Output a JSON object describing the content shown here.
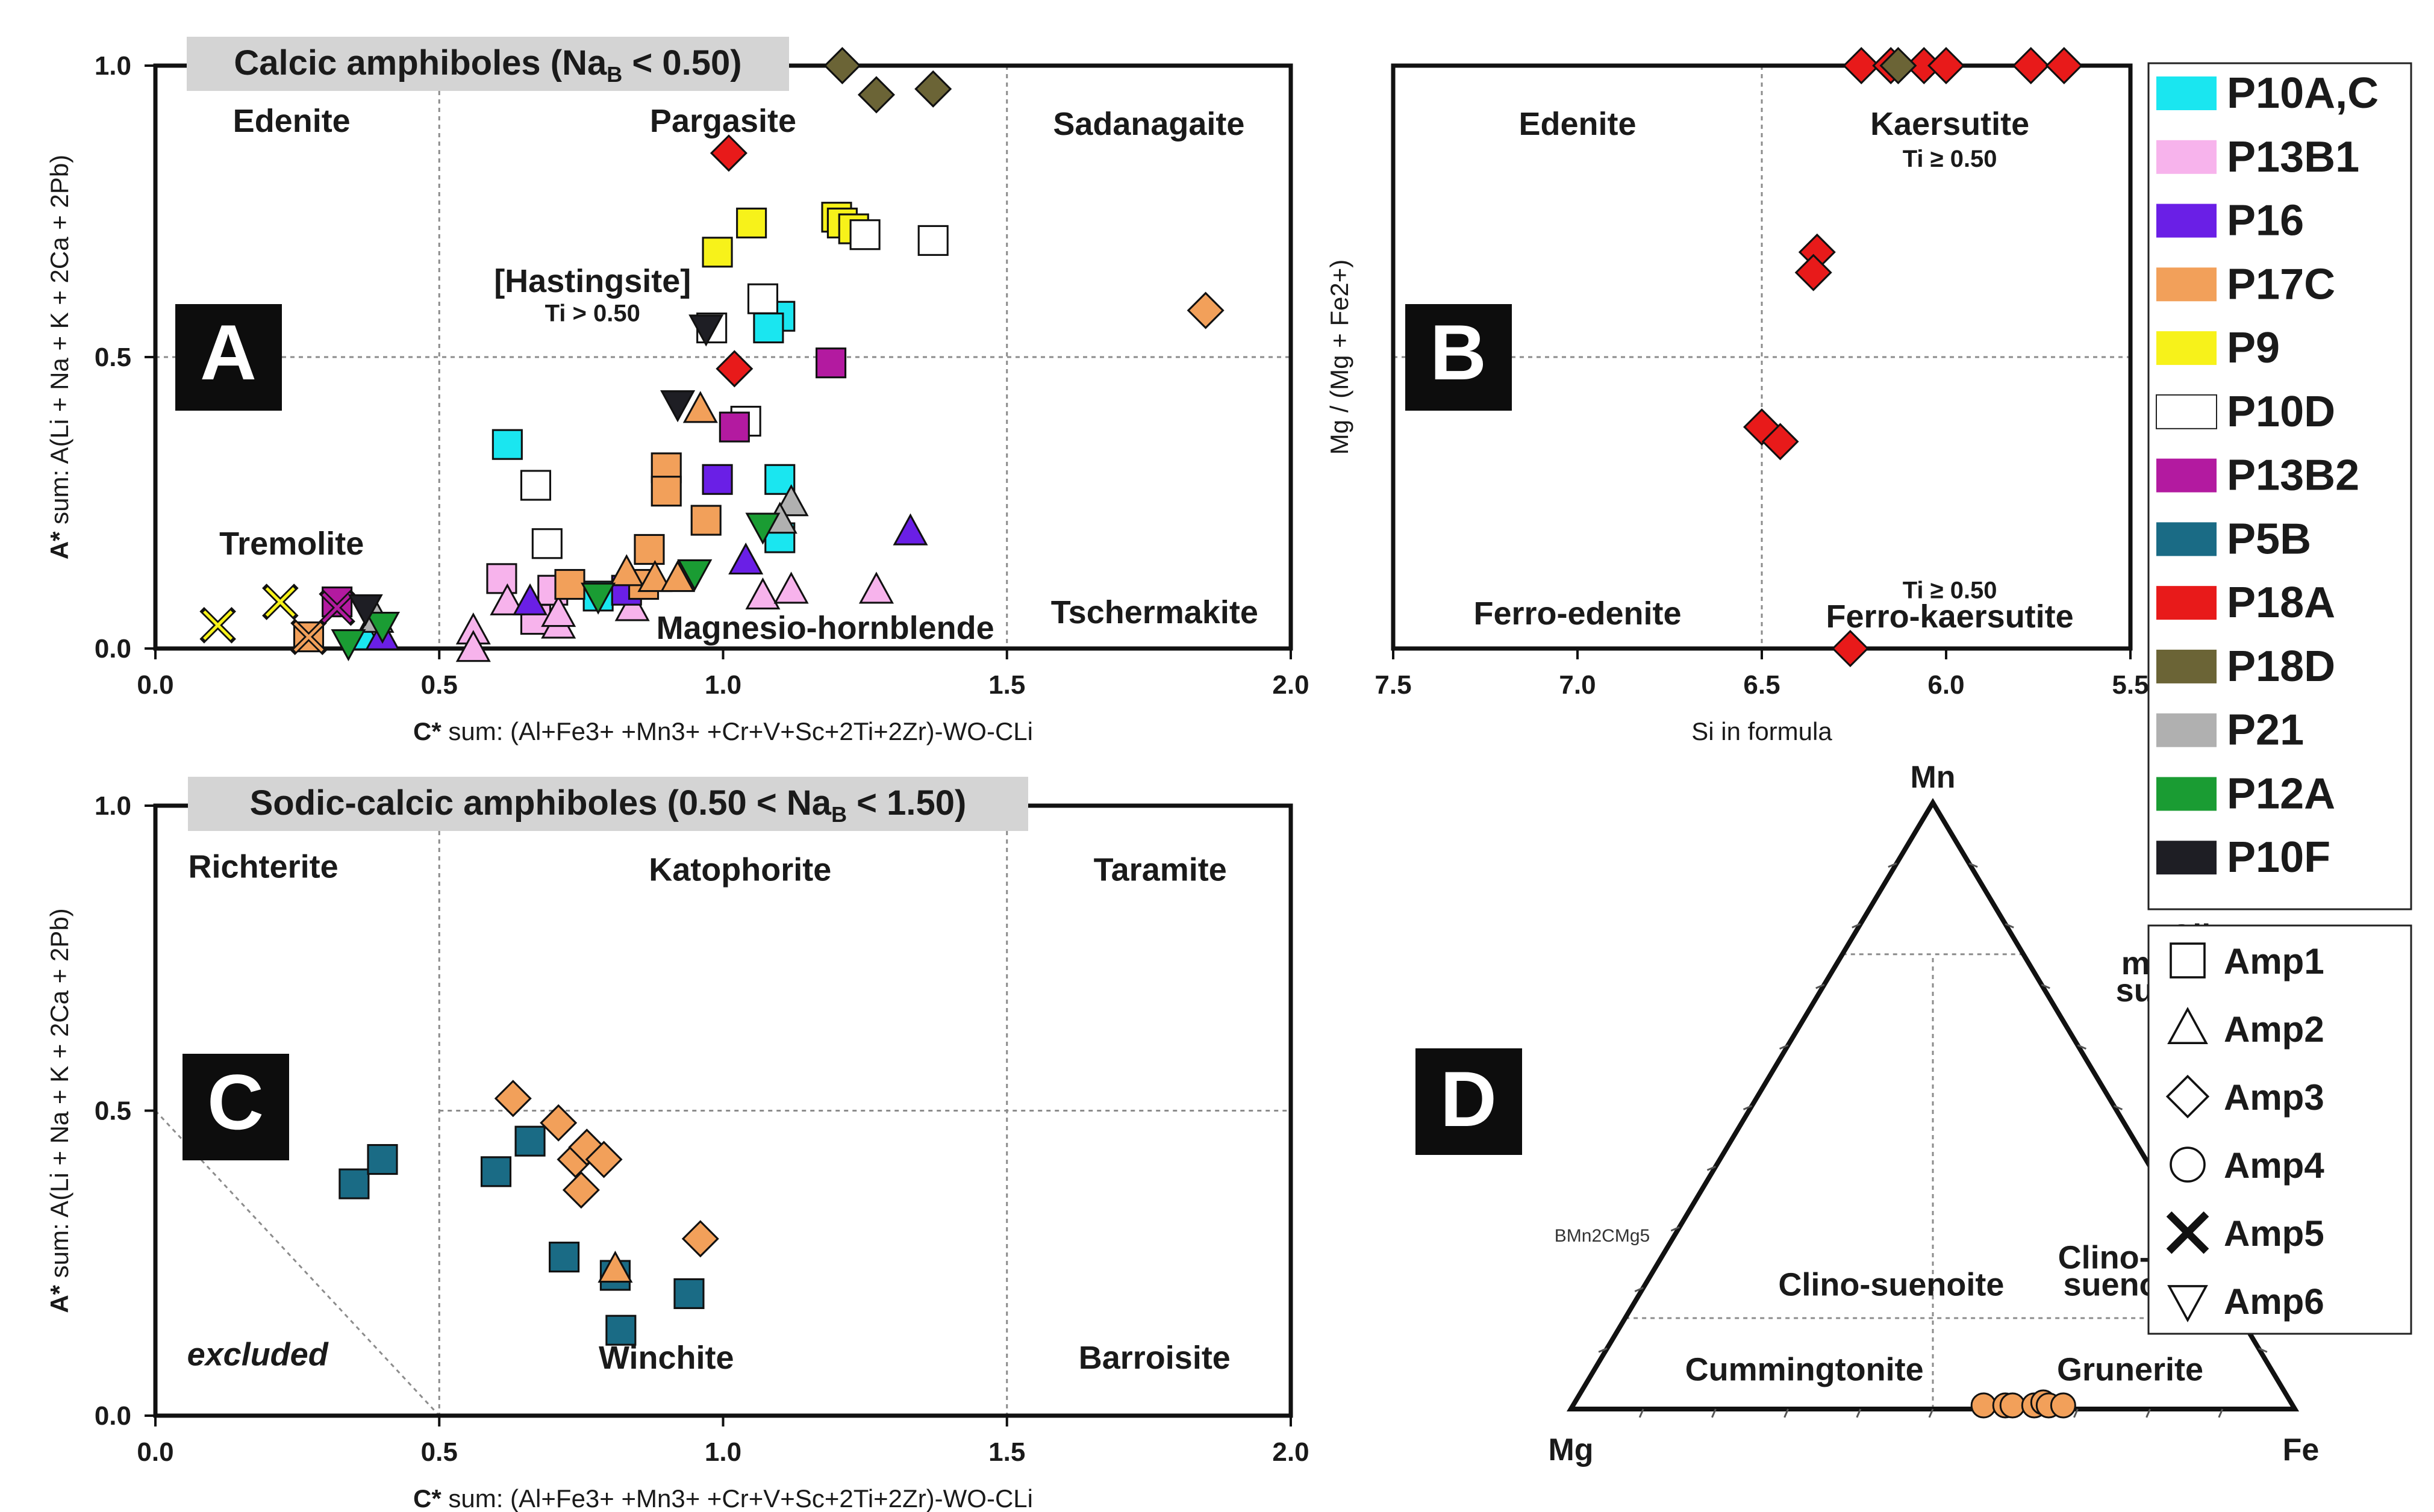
{
  "colors": {
    "P10A,C": "#1ae6f0",
    "P13B1": "#f7b3ec",
    "P16": "#6a1fe6",
    "P17C": "#f2a05a",
    "P9": "#f7f21a",
    "P10D": "#ffffff",
    "P13B2": "#b31aa0",
    "P5B": "#1a6b85",
    "P18A": "#e81a1a",
    "P18D": "#6b6436",
    "P21": "#b0b0b0",
    "P12A": "#1a9c33",
    "P10F": "#1e1e24"
  },
  "legend_samples": [
    {
      "name": "P10A,C",
      "label": "P10A,C"
    },
    {
      "name": "P13B1",
      "label": "P13B1"
    },
    {
      "name": "P16",
      "label": "P16"
    },
    {
      "name": "P17C",
      "label": "P17C"
    },
    {
      "name": "P9",
      "label": "P9"
    },
    {
      "name": "P10D",
      "label": "P10D"
    },
    {
      "name": "P13B2",
      "label": "P13B2"
    },
    {
      "name": "P5B",
      "label": "P5B"
    },
    {
      "name": "P18A",
      "label": "P18A"
    },
    {
      "name": "P18D",
      "label": "P18D"
    },
    {
      "name": "P21",
      "label": "P21"
    },
    {
      "name": "P12A",
      "label": "P12A"
    },
    {
      "name": "P10F",
      "label": "P10F"
    }
  ],
  "legend_shapes": [
    {
      "shape": "square",
      "label": "Amp1"
    },
    {
      "shape": "triangle",
      "label": "Amp2"
    },
    {
      "shape": "diamond",
      "label": "Amp3"
    },
    {
      "shape": "circle",
      "label": "Amp4"
    },
    {
      "shape": "cross",
      "label": "Amp5"
    },
    {
      "shape": "triangle-down",
      "label": "Amp6"
    }
  ],
  "chart_data": [
    {
      "id": "A",
      "type": "scatter",
      "panel_letter": "A",
      "title": "Calcic amphiboles (Na",
      "title_sub": "B",
      "title_tail": " < 0.50)",
      "xlabel": "C* sum: ",
      "xlabel_rest": "(Al+Fe3+ +Mn3+ +Cr+V+Sc+2Ti+2Zr)-WO-CLi",
      "ylabel": "A* sum: A(Li + Na + K + 2Ca + 2Pb)",
      "xlim": [
        0,
        2
      ],
      "ylim": [
        0,
        1
      ],
      "xticks": [
        "0.0",
        "0.5",
        "1.0",
        "1.5",
        "2.0"
      ],
      "yticks": [
        "0.0",
        "0.5",
        "1.0"
      ],
      "region_labels": [
        {
          "text": "Edenite",
          "x": 0.24,
          "y": 0.905
        },
        {
          "text": "Pargasite",
          "x": 1.0,
          "y": 0.905
        },
        {
          "text": "Sadanagaite",
          "x": 1.75,
          "y": 0.9
        },
        {
          "text": "[Hastingsite]",
          "x": 0.77,
          "y": 0.63
        },
        {
          "text": "Ti > 0.50",
          "x": 0.77,
          "y": 0.58,
          "small": true
        },
        {
          "text": "Tremolite",
          "x": 0.24,
          "y": 0.18
        },
        {
          "text": "Magnesio-hornblende",
          "x": 1.18,
          "y": 0.035
        },
        {
          "text": "Tschermakite",
          "x": 1.76,
          "y": 0.062
        }
      ],
      "points": [
        {
          "x": 0.62,
          "y": 0.35,
          "s": "P10A,C",
          "m": "square"
        },
        {
          "x": 1.1,
          "y": 0.29,
          "s": "P10A,C",
          "m": "square"
        },
        {
          "x": 1.1,
          "y": 0.57,
          "s": "P10A,C",
          "m": "square"
        },
        {
          "x": 1.08,
          "y": 0.55,
          "s": "P10A,C",
          "m": "square"
        },
        {
          "x": 1.1,
          "y": 0.19,
          "s": "P10A,C",
          "m": "square"
        },
        {
          "x": 0.78,
          "y": 0.09,
          "s": "P10A,C",
          "m": "square"
        },
        {
          "x": 0.37,
          "y": 0.02,
          "s": "P10A,C",
          "m": "triangle"
        },
        {
          "x": 0.61,
          "y": 0.12,
          "s": "P13B1",
          "m": "square"
        },
        {
          "x": 0.7,
          "y": 0.1,
          "s": "P13B1",
          "m": "square"
        },
        {
          "x": 0.67,
          "y": 0.05,
          "s": "P13B1",
          "m": "square"
        },
        {
          "x": 0.56,
          "y": 0.03,
          "s": "P13B1",
          "m": "triangle"
        },
        {
          "x": 0.56,
          "y": 0.0,
          "s": "P13B1",
          "m": "triangle"
        },
        {
          "x": 0.62,
          "y": 0.08,
          "s": "P13B1",
          "m": "triangle"
        },
        {
          "x": 0.71,
          "y": 0.04,
          "s": "P13B1",
          "m": "triangle"
        },
        {
          "x": 0.71,
          "y": 0.06,
          "s": "P13B1",
          "m": "triangle"
        },
        {
          "x": 0.84,
          "y": 0.07,
          "s": "P13B1",
          "m": "triangle"
        },
        {
          "x": 1.07,
          "y": 0.09,
          "s": "P13B1",
          "m": "triangle"
        },
        {
          "x": 1.12,
          "y": 0.1,
          "s": "P13B1",
          "m": "triangle"
        },
        {
          "x": 1.27,
          "y": 0.1,
          "s": "P13B1",
          "m": "triangle"
        },
        {
          "x": 1.33,
          "y": 0.2,
          "s": "P16",
          "m": "triangle"
        },
        {
          "x": 1.04,
          "y": 0.15,
          "s": "P16",
          "m": "triangle"
        },
        {
          "x": 0.66,
          "y": 0.08,
          "s": "P16",
          "m": "triangle"
        },
        {
          "x": 0.83,
          "y": 0.1,
          "s": "P16",
          "m": "square"
        },
        {
          "x": 0.99,
          "y": 0.29,
          "s": "P16",
          "m": "square"
        },
        {
          "x": 0.4,
          "y": 0.02,
          "s": "P16",
          "m": "triangle"
        },
        {
          "x": 0.96,
          "y": 0.41,
          "s": "P17C",
          "m": "triangle"
        },
        {
          "x": 0.9,
          "y": 0.31,
          "s": "P17C",
          "m": "square"
        },
        {
          "x": 0.9,
          "y": 0.27,
          "s": "P17C",
          "m": "square"
        },
        {
          "x": 0.97,
          "y": 0.22,
          "s": "P17C",
          "m": "square"
        },
        {
          "x": 0.87,
          "y": 0.17,
          "s": "P17C",
          "m": "square"
        },
        {
          "x": 0.73,
          "y": 0.11,
          "s": "P17C",
          "m": "square"
        },
        {
          "x": 0.86,
          "y": 0.11,
          "s": "P17C",
          "m": "square"
        },
        {
          "x": 0.83,
          "y": 0.13,
          "s": "P17C",
          "m": "triangle"
        },
        {
          "x": 0.88,
          "y": 0.12,
          "s": "P17C",
          "m": "triangle"
        },
        {
          "x": 0.92,
          "y": 0.12,
          "s": "P17C",
          "m": "triangle"
        },
        {
          "x": 0.27,
          "y": 0.02,
          "s": "P17C",
          "m": "square"
        },
        {
          "x": 0.27,
          "y": 0.02,
          "s": "P17C",
          "m": "cross"
        },
        {
          "x": 1.85,
          "y": 0.58,
          "s": "P17C",
          "m": "diamond"
        },
        {
          "x": 0.99,
          "y": 0.68,
          "s": "P9",
          "m": "square"
        },
        {
          "x": 1.05,
          "y": 0.73,
          "s": "P9",
          "m": "square"
        },
        {
          "x": 1.2,
          "y": 0.74,
          "s": "P9",
          "m": "square"
        },
        {
          "x": 1.21,
          "y": 0.73,
          "s": "P9",
          "m": "square"
        },
        {
          "x": 1.23,
          "y": 0.72,
          "s": "P9",
          "m": "square"
        },
        {
          "x": 0.11,
          "y": 0.04,
          "s": "P9",
          "m": "cross"
        },
        {
          "x": 0.22,
          "y": 0.08,
          "s": "P9",
          "m": "cross"
        },
        {
          "x": 1.25,
          "y": 0.71,
          "s": "P10D",
          "m": "square"
        },
        {
          "x": 1.37,
          "y": 0.7,
          "s": "P10D",
          "m": "square"
        },
        {
          "x": 1.07,
          "y": 0.6,
          "s": "P10D",
          "m": "square"
        },
        {
          "x": 0.98,
          "y": 0.55,
          "s": "P10D",
          "m": "square"
        },
        {
          "x": 1.04,
          "y": 0.39,
          "s": "P10D",
          "m": "square"
        },
        {
          "x": 0.67,
          "y": 0.28,
          "s": "P10D",
          "m": "square"
        },
        {
          "x": 0.69,
          "y": 0.18,
          "s": "P10D",
          "m": "square"
        },
        {
          "x": 1.19,
          "y": 0.49,
          "s": "P13B2",
          "m": "square"
        },
        {
          "x": 1.02,
          "y": 0.38,
          "s": "P13B2",
          "m": "square"
        },
        {
          "x": 0.32,
          "y": 0.08,
          "s": "P13B2",
          "m": "square"
        },
        {
          "x": 0.32,
          "y": 0.07,
          "s": "P13B2",
          "m": "cross"
        },
        {
          "x": 1.01,
          "y": 0.85,
          "s": "P18A",
          "m": "diamond"
        },
        {
          "x": 1.02,
          "y": 0.48,
          "s": "P18A",
          "m": "diamond"
        },
        {
          "x": 1.21,
          "y": 1.0,
          "s": "P18D",
          "m": "diamond"
        },
        {
          "x": 1.27,
          "y": 0.95,
          "s": "P18D",
          "m": "diamond"
        },
        {
          "x": 1.37,
          "y": 0.96,
          "s": "P18D",
          "m": "diamond"
        },
        {
          "x": 1.12,
          "y": 0.25,
          "s": "P21",
          "m": "triangle"
        },
        {
          "x": 1.1,
          "y": 0.22,
          "s": "P21",
          "m": "triangle"
        },
        {
          "x": 0.39,
          "y": 0.05,
          "s": "P21",
          "m": "triangle"
        },
        {
          "x": 1.07,
          "y": 0.21,
          "s": "P12A",
          "m": "triangle-down"
        },
        {
          "x": 0.95,
          "y": 0.13,
          "s": "P12A",
          "m": "triangle-down"
        },
        {
          "x": 0.78,
          "y": 0.09,
          "s": "P12A",
          "m": "triangle-down"
        },
        {
          "x": 0.34,
          "y": 0.01,
          "s": "P12A",
          "m": "triangle-down"
        },
        {
          "x": 0.4,
          "y": 0.04,
          "s": "P12A",
          "m": "triangle-down"
        },
        {
          "x": 0.97,
          "y": 0.55,
          "s": "P10F",
          "m": "triangle-down"
        },
        {
          "x": 0.92,
          "y": 0.42,
          "s": "P10F",
          "m": "triangle-down"
        },
        {
          "x": 0.37,
          "y": 0.07,
          "s": "P10F",
          "m": "triangle-down"
        }
      ]
    },
    {
      "id": "B",
      "type": "scatter",
      "panel_letter": "B",
      "xlabel": "Si in formula",
      "ylabel": "Mg / (Mg + Fe2+)",
      "xlim": [
        7.5,
        5.5
      ],
      "ylim": [
        0,
        1
      ],
      "xticks": [
        "7.5",
        "7.0",
        "6.5",
        "6.0",
        "5.5"
      ],
      "region_labels": [
        {
          "text": "Edenite",
          "x": 7.0,
          "y": 0.9
        },
        {
          "text": "Kaersutite",
          "x": 5.99,
          "y": 0.9
        },
        {
          "text": "Ti ≥ 0.50",
          "x": 5.99,
          "y": 0.845,
          "small": true
        },
        {
          "text": "Ferro-edenite",
          "x": 7.0,
          "y": 0.06
        },
        {
          "text": "Ti ≥ 0.50",
          "x": 5.99,
          "y": 0.105,
          "small": true
        },
        {
          "text": "Ferro-kaersutite",
          "x": 5.99,
          "y": 0.055
        }
      ],
      "points": [
        {
          "x": 6.23,
          "y": 1.0,
          "s": "P18A",
          "m": "diamond"
        },
        {
          "x": 6.15,
          "y": 1.0,
          "s": "P18A",
          "m": "diamond"
        },
        {
          "x": 6.06,
          "y": 1.0,
          "s": "P18A",
          "m": "diamond"
        },
        {
          "x": 6.0,
          "y": 1.0,
          "s": "P18A",
          "m": "diamond"
        },
        {
          "x": 5.77,
          "y": 1.0,
          "s": "P18A",
          "m": "diamond"
        },
        {
          "x": 5.68,
          "y": 1.0,
          "s": "P18A",
          "m": "diamond"
        },
        {
          "x": 6.13,
          "y": 1.0,
          "s": "P18D",
          "m": "diamond"
        },
        {
          "x": 6.35,
          "y": 0.68,
          "s": "P18A",
          "m": "diamond"
        },
        {
          "x": 6.36,
          "y": 0.645,
          "s": "P18A",
          "m": "diamond"
        },
        {
          "x": 6.5,
          "y": 0.38,
          "s": "P18A",
          "m": "diamond"
        },
        {
          "x": 6.45,
          "y": 0.355,
          "s": "P18A",
          "m": "diamond"
        },
        {
          "x": 6.26,
          "y": 0.0,
          "s": "P18A",
          "m": "diamond"
        }
      ]
    },
    {
      "id": "C",
      "type": "scatter",
      "panel_letter": "C",
      "title": "Sodic-calcic amphiboles  (0.50 < Na",
      "title_sub": "B",
      "title_tail": " < 1.50)",
      "xlabel": "C* sum: ",
      "xlabel_rest": "(Al+Fe3+ +Mn3+ +Cr+V+Sc+2Ti+2Zr)-WO-CLi",
      "ylabel": "A* sum: A(Li + Na + K + 2Ca + 2Pb)",
      "xlim": [
        0,
        2
      ],
      "ylim": [
        0,
        1
      ],
      "xticks": [
        "0.0",
        "0.5",
        "1.0",
        "1.5",
        "2.0"
      ],
      "yticks": [
        "0.0",
        "0.5",
        "1.0"
      ],
      "region_labels": [
        {
          "text": "Richterite",
          "x": 0.19,
          "y": 0.9
        },
        {
          "text": "Katophorite",
          "x": 1.03,
          "y": 0.895
        },
        {
          "text": "Taramite",
          "x": 1.77,
          "y": 0.895
        },
        {
          "text": "excluded",
          "x": 0.18,
          "y": 0.1,
          "italic": true
        },
        {
          "text": "Winchite",
          "x": 0.9,
          "y": 0.095
        },
        {
          "text": "Barroisite",
          "x": 1.76,
          "y": 0.095
        }
      ],
      "points": [
        {
          "x": 0.35,
          "y": 0.38,
          "s": "P5B",
          "m": "square"
        },
        {
          "x": 0.4,
          "y": 0.42,
          "s": "P5B",
          "m": "square"
        },
        {
          "x": 0.6,
          "y": 0.4,
          "s": "P5B",
          "m": "square"
        },
        {
          "x": 0.66,
          "y": 0.45,
          "s": "P5B",
          "m": "square"
        },
        {
          "x": 0.72,
          "y": 0.26,
          "s": "P5B",
          "m": "square"
        },
        {
          "x": 0.81,
          "y": 0.23,
          "s": "P5B",
          "m": "square"
        },
        {
          "x": 0.94,
          "y": 0.2,
          "s": "P5B",
          "m": "square"
        },
        {
          "x": 0.82,
          "y": 0.14,
          "s": "P5B",
          "m": "square"
        },
        {
          "x": 0.63,
          "y": 0.52,
          "s": "P17C",
          "m": "diamond"
        },
        {
          "x": 0.71,
          "y": 0.48,
          "s": "P17C",
          "m": "diamond"
        },
        {
          "x": 0.74,
          "y": 0.42,
          "s": "P17C",
          "m": "diamond"
        },
        {
          "x": 0.76,
          "y": 0.44,
          "s": "P17C",
          "m": "diamond"
        },
        {
          "x": 0.79,
          "y": 0.42,
          "s": "P17C",
          "m": "diamond"
        },
        {
          "x": 0.75,
          "y": 0.37,
          "s": "P17C",
          "m": "diamond"
        },
        {
          "x": 0.96,
          "y": 0.29,
          "s": "P17C",
          "m": "diamond"
        },
        {
          "x": 0.81,
          "y": 0.24,
          "s": "P17C",
          "m": "triangle"
        }
      ]
    },
    {
      "id": "D",
      "type": "ternary",
      "panel_letter": "D",
      "apex_top": "Mn",
      "apex_left": "Mg",
      "apex_right": "Fe",
      "side_label": "BMn2CMg5",
      "region_labels": [
        {
          "text": "Clino-",
          "fe": 0.5,
          "mn": 0.78
        },
        {
          "text": "mangano-",
          "fe": 0.5,
          "mn": 0.735
        },
        {
          "text": "suenoite",
          "fe": 0.5,
          "mn": 0.69
        },
        {
          "text": "Clino-suenoite",
          "fe": 0.34,
          "mn": 0.205
        },
        {
          "text": "Clino-ferro-",
          "fe": 0.67,
          "mn": 0.25
        },
        {
          "text": "suenoite",
          "fe": 0.67,
          "mn": 0.205
        },
        {
          "text": "Cummingtonite",
          "fe": 0.29,
          "mn": 0.065
        },
        {
          "text": "Grunerite",
          "fe": 0.74,
          "mn": 0.065
        }
      ],
      "points": [
        {
          "fe": 0.57,
          "mn": 0.0,
          "s": "P17C",
          "m": "circle"
        },
        {
          "fe": 0.6,
          "mn": 0.0,
          "s": "P17C",
          "m": "circle"
        },
        {
          "fe": 0.61,
          "mn": 0.0,
          "s": "P17C",
          "m": "circle"
        },
        {
          "fe": 0.64,
          "mn": 0.0,
          "s": "P17C",
          "m": "circle"
        },
        {
          "fe": 0.65,
          "mn": 0.005,
          "s": "P17C",
          "m": "circle"
        },
        {
          "fe": 0.66,
          "mn": 0.0,
          "s": "P17C",
          "m": "circle"
        },
        {
          "fe": 0.68,
          "mn": 0.0,
          "s": "P17C",
          "m": "circle"
        }
      ]
    }
  ]
}
